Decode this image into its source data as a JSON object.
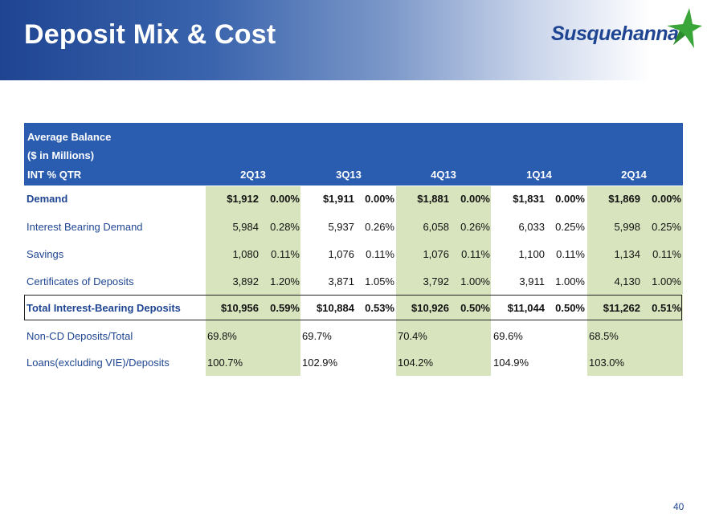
{
  "header": {
    "title": "Deposit Mix & Cost",
    "logo_text": "Susquehanna"
  },
  "table": {
    "header_lines": [
      "Average Balance",
      "($ in Millions)",
      "INT % QTR"
    ],
    "quarters": [
      "2Q13",
      "3Q13",
      "4Q13",
      "1Q14",
      "2Q14"
    ],
    "rows": [
      {
        "label": "Demand",
        "bold": true,
        "cells": [
          [
            "$1,912",
            "0.00%"
          ],
          [
            "$1,911",
            "0.00%"
          ],
          [
            "$1,881",
            "0.00%"
          ],
          [
            "$1,831",
            "0.00%"
          ],
          [
            "$1,869",
            "0.00%"
          ]
        ]
      },
      {
        "label": "Interest Bearing Demand",
        "bold": false,
        "cells": [
          [
            "5,984",
            "0.28%"
          ],
          [
            "5,937",
            "0.26%"
          ],
          [
            "6,058",
            "0.26%"
          ],
          [
            "6,033",
            "0.25%"
          ],
          [
            "5,998",
            "0.25%"
          ]
        ]
      },
      {
        "label": "Savings",
        "bold": false,
        "cells": [
          [
            "1,080",
            "0.11%"
          ],
          [
            "1,076",
            "0.11%"
          ],
          [
            "1,076",
            "0.11%"
          ],
          [
            "1,100",
            "0.11%"
          ],
          [
            "1,134",
            "0.11%"
          ]
        ]
      },
      {
        "label": "Certificates of Deposits",
        "bold": false,
        "cells": [
          [
            "3,892",
            "1.20%"
          ],
          [
            "3,871",
            "1.05%"
          ],
          [
            "3,792",
            "1.00%"
          ],
          [
            "3,911",
            "1.00%"
          ],
          [
            "4,130",
            "1.00%"
          ]
        ]
      },
      {
        "label": "Total Interest-Bearing Deposits",
        "bold": true,
        "cells": [
          [
            "$10,956",
            "0.59%"
          ],
          [
            "$10,884",
            "0.53%"
          ],
          [
            "$10,926",
            "0.50%"
          ],
          [
            "$11,044",
            "0.50%"
          ],
          [
            "$11,262",
            "0.51%"
          ]
        ]
      }
    ],
    "ratio_rows": [
      {
        "label": "Non-CD Deposits/Total",
        "values": [
          "69.8%",
          "69.7%",
          "70.4%",
          "69.6%",
          "68.5%"
        ]
      },
      {
        "label": "Loans(excluding VIE)/Deposits",
        "values": [
          "100.7%",
          "102.9%",
          "104.2%",
          "104.9%",
          "103.0%"
        ]
      }
    ]
  },
  "footer": {
    "page_number": "40"
  },
  "colors": {
    "header_blue": "#2a5db0",
    "label_blue": "#1f4592",
    "highlight_green": "#d7e4bd",
    "star_green": "#3aa63a"
  }
}
